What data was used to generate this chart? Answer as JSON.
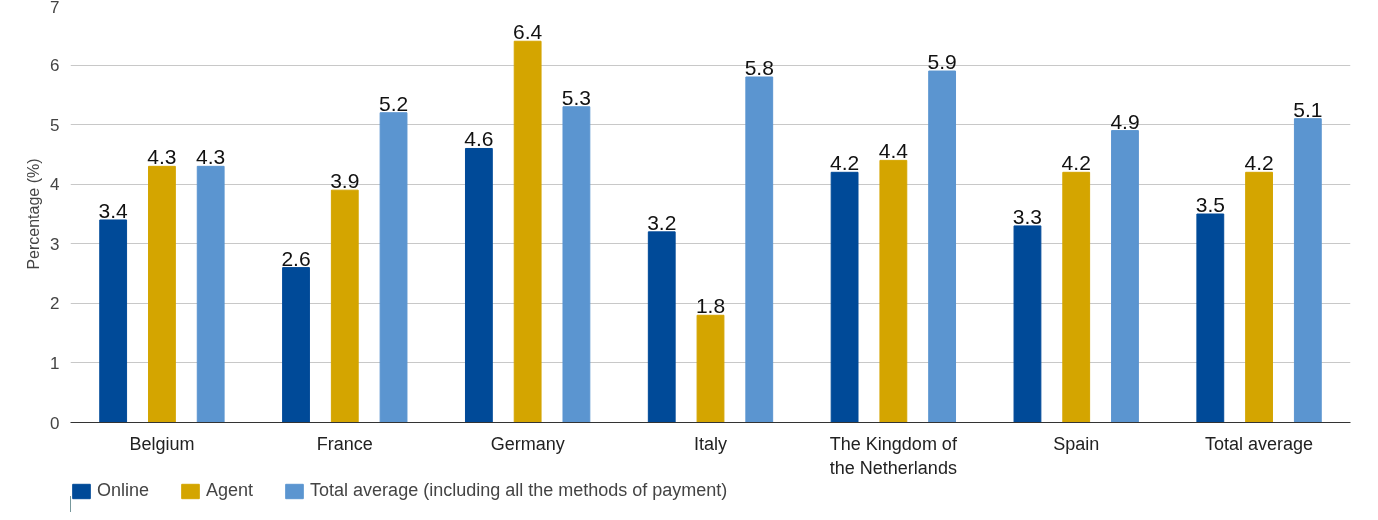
{
  "chart_data": {
    "type": "bar",
    "ylabel": "Percentage (%)",
    "categories": [
      "Belgium",
      "France",
      "Germany",
      "Italy",
      "The Kingdom of the Netherlands",
      "Spain",
      "Total average"
    ],
    "series": [
      {
        "name": "Online",
        "color": "#004a98",
        "values": [
          3.4,
          2.6,
          4.6,
          3.2,
          4.2,
          3.3,
          3.5
        ]
      },
      {
        "name": "Agent",
        "color": "#d4a500",
        "values": [
          4.3,
          3.9,
          6.4,
          1.8,
          4.4,
          4.2,
          4.2
        ]
      },
      {
        "name": "Total average (including all the methods of payment)",
        "color": "#5b95d0",
        "values": [
          4.3,
          5.2,
          5.3,
          5.8,
          5.9,
          4.9,
          5.1
        ]
      }
    ],
    "data_labels": true,
    "ylim": [
      0,
      7
    ],
    "yticks": [
      0,
      1,
      2,
      3,
      4,
      5,
      6,
      7
    ],
    "grid": "y",
    "legend": "bottom left"
  }
}
